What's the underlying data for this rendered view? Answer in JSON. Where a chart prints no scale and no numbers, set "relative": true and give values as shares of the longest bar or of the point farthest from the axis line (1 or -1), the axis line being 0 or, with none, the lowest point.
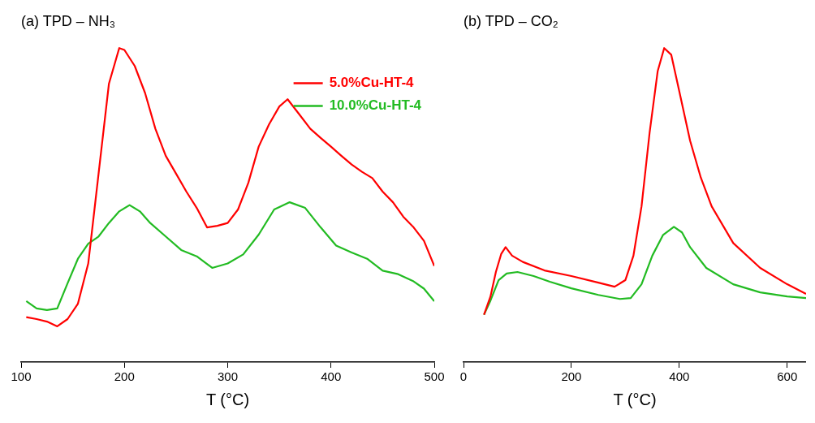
{
  "chart_data": [
    {
      "type": "line",
      "title": "(a) TPD – NH₃",
      "xlabel": "T (°C)",
      "relative": true,
      "xlim": [
        100,
        500
      ],
      "xticks": [
        100,
        200,
        300,
        400,
        500
      ],
      "tick_labels": "x",
      "legend": "top right",
      "grid": false,
      "marker": "none",
      "line_style": "solid",
      "series": [
        {
          "name": "5.0%Cu-HT-4",
          "color": "#ff0000",
          "x": [
            105,
            115,
            125,
            135,
            145,
            155,
            165,
            175,
            185,
            195,
            200,
            210,
            220,
            230,
            240,
            250,
            260,
            270,
            280,
            290,
            300,
            310,
            320,
            330,
            340,
            350,
            358,
            370,
            380,
            390,
            400,
            410,
            420,
            430,
            440,
            450,
            460,
            470,
            480,
            490,
            500
          ],
          "values": [
            0.143,
            0.137,
            0.129,
            0.114,
            0.137,
            0.186,
            0.314,
            0.6,
            0.886,
            1.0,
            0.994,
            0.943,
            0.857,
            0.743,
            0.657,
            0.6,
            0.543,
            0.491,
            0.429,
            0.434,
            0.443,
            0.486,
            0.571,
            0.686,
            0.757,
            0.814,
            0.837,
            0.786,
            0.743,
            0.714,
            0.686,
            0.657,
            0.629,
            0.606,
            0.586,
            0.543,
            0.509,
            0.463,
            0.429,
            0.386,
            0.306
          ]
        },
        {
          "name": "10.0%Cu-HT-4",
          "color": "#22bb22",
          "x": [
            105,
            115,
            125,
            135,
            145,
            155,
            165,
            175,
            185,
            195,
            205,
            215,
            225,
            240,
            255,
            270,
            285,
            300,
            315,
            330,
            345,
            360,
            375,
            390,
            405,
            420,
            435,
            450,
            465,
            480,
            490,
            500
          ],
          "values": [
            0.194,
            0.171,
            0.166,
            0.171,
            0.251,
            0.329,
            0.377,
            0.4,
            0.443,
            0.48,
            0.5,
            0.48,
            0.443,
            0.4,
            0.357,
            0.337,
            0.3,
            0.314,
            0.343,
            0.406,
            0.486,
            0.509,
            0.491,
            0.429,
            0.371,
            0.349,
            0.329,
            0.291,
            0.28,
            0.257,
            0.234,
            0.194
          ]
        }
      ]
    },
    {
      "type": "line",
      "title": "(b) TPD – CO₂",
      "xlabel": "T (°C)",
      "relative": true,
      "xlim": [
        0,
        635
      ],
      "xticks": [
        0,
        200,
        400,
        600
      ],
      "tick_labels": "x",
      "grid": false,
      "marker": "none",
      "line_style": "solid",
      "series": [
        {
          "color": "#ff0000",
          "x": [
            38,
            50,
            60,
            70,
            78,
            90,
            110,
            150,
            200,
            250,
            280,
            300,
            315,
            330,
            345,
            360,
            372,
            385,
            400,
            420,
            440,
            460,
            500,
            550,
            600,
            635
          ],
          "values": [
            0.151,
            0.209,
            0.287,
            0.345,
            0.366,
            0.339,
            0.319,
            0.292,
            0.274,
            0.253,
            0.24,
            0.261,
            0.339,
            0.496,
            0.731,
            0.927,
            1.0,
            0.979,
            0.862,
            0.705,
            0.587,
            0.496,
            0.379,
            0.3,
            0.248,
            0.217
          ]
        },
        {
          "color": "#22bb22",
          "x": [
            38,
            50,
            65,
            80,
            100,
            130,
            160,
            200,
            250,
            290,
            310,
            330,
            350,
            370,
            390,
            405,
            420,
            450,
            500,
            550,
            600,
            635
          ],
          "values": [
            0.151,
            0.196,
            0.261,
            0.282,
            0.287,
            0.274,
            0.256,
            0.235,
            0.214,
            0.201,
            0.204,
            0.248,
            0.339,
            0.405,
            0.431,
            0.413,
            0.366,
            0.3,
            0.248,
            0.222,
            0.209,
            0.204
          ]
        }
      ]
    }
  ]
}
